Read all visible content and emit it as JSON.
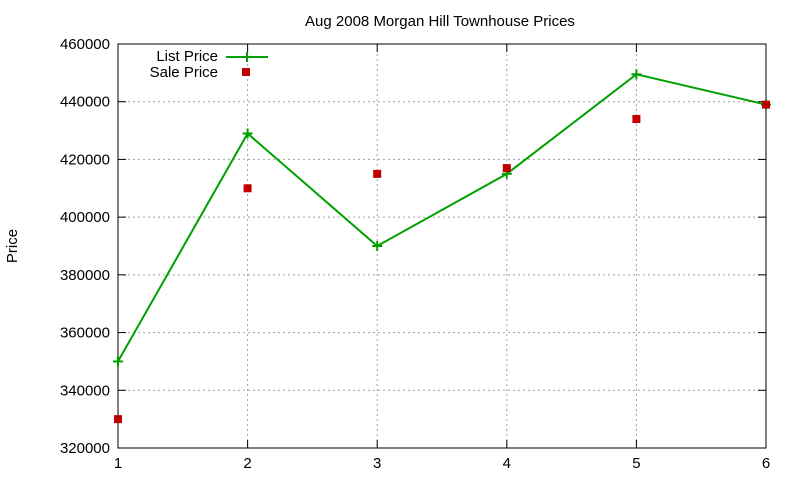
{
  "chart_data": {
    "type": "line",
    "title": "Aug 2008 Morgan Hill Townhouse Prices",
    "xlabel": "",
    "ylabel": "Price",
    "x": [
      1,
      2,
      3,
      4,
      5,
      6
    ],
    "xlim": [
      1,
      6
    ],
    "ylim": [
      320000,
      460000
    ],
    "xticks": [
      "1",
      "2",
      "3",
      "4",
      "5",
      "6"
    ],
    "yticks": [
      "320000",
      "340000",
      "360000",
      "380000",
      "400000",
      "420000",
      "440000",
      "460000"
    ],
    "grid": true,
    "legend_position": "top-left",
    "series": [
      {
        "name": "List Price",
        "style": "linespoints",
        "marker": "plus",
        "color": "#00a000",
        "values": [
          350000,
          429000,
          390000,
          415000,
          449500,
          439000
        ]
      },
      {
        "name": "Sale Price",
        "style": "points",
        "marker": "square",
        "color": "#c00000",
        "values": [
          330000,
          410000,
          415000,
          417000,
          434000,
          439000
        ]
      }
    ]
  }
}
